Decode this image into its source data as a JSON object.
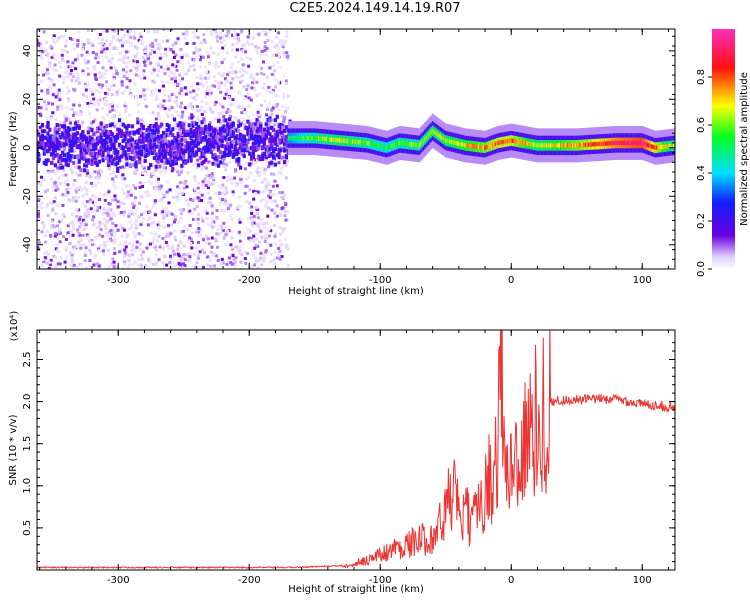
{
  "title": "C2E5.2024.149.14.19.R07",
  "chart_data": [
    {
      "type": "heatmap",
      "xlabel": "Height of straight line (km)",
      "ylabel": "Frequency (Hz)",
      "xlim": [
        -362,
        125
      ],
      "ylim": [
        -50,
        49
      ],
      "xticks": [
        -300,
        -200,
        -100,
        0,
        100
      ],
      "yticks": [
        -40,
        -20,
        0,
        20,
        40
      ],
      "colorbar": {
        "label": "Normalized spectral amplitude",
        "range": [
          0,
          1
        ],
        "ticks": [
          "0.0",
          "0.2",
          "0.4",
          "0.6",
          "0.8"
        ],
        "tick_values": [
          0.0,
          0.2,
          0.4,
          0.6,
          0.8
        ],
        "colormap": "rainbow (white, purple, blue, cyan, green, yellow, red, magenta)"
      },
      "ridge": {
        "x": [
          -362,
          -300,
          -250,
          -200,
          -170,
          -150,
          -130,
          -110,
          -95,
          -85,
          -70,
          -60,
          -50,
          -35,
          -20,
          -10,
          0,
          20,
          50,
          80,
          100,
          110,
          125
        ],
        "frequency": [
          1,
          1,
          2,
          2,
          4,
          4,
          3,
          2,
          0,
          2,
          1,
          7,
          3,
          1,
          0,
          2,
          3,
          1,
          1,
          2,
          2,
          0,
          1
        ],
        "amplitude": [
          0.2,
          0.22,
          0.22,
          0.25,
          0.5,
          0.6,
          0.65,
          0.6,
          0.55,
          0.6,
          0.6,
          0.65,
          0.65,
          0.7,
          0.75,
          0.8,
          0.8,
          0.65,
          0.75,
          0.9,
          0.95,
          0.8,
          0.6
        ]
      }
    },
    {
      "type": "line",
      "series": [
        {
          "x": [
            -362,
            -300,
            -250,
            -200,
            -170,
            -130,
            -120,
            -110,
            -100,
            -90,
            -80,
            -70,
            -60,
            -52,
            -48,
            -44,
            -40,
            -35,
            -30,
            -25,
            -20,
            -15,
            -12,
            -10,
            -7,
            -5,
            -3,
            0,
            5,
            10,
            15,
            20,
            25,
            30,
            40,
            50,
            60,
            70,
            80,
            90,
            100,
            110,
            125
          ],
          "y": [
            0.03,
            0.03,
            0.03,
            0.03,
            0.03,
            0.05,
            0.08,
            0.12,
            0.18,
            0.25,
            0.3,
            0.35,
            0.4,
            0.6,
            0.8,
            1.0,
            0.6,
            0.7,
            0.5,
            0.8,
            1.0,
            1.1,
            1.3,
            1.6,
            2.8,
            1.2,
            1.0,
            1.3,
            1.35,
            1.5,
            1.6,
            1.8,
            1.9,
            2.0,
            2.02,
            2.02,
            2.03,
            2.03,
            2.03,
            2.0,
            1.97,
            1.96,
            1.93
          ]
        }
      ],
      "color": "#ee3333",
      "xlabel": "Height of straight line (km)",
      "ylabel": "SNR (10 * v/v)",
      "y_multiplier": "(x10⁴)",
      "xlim": [
        -362,
        125
      ],
      "ylim": [
        0,
        2.85
      ],
      "xticks": [
        -300,
        -200,
        -100,
        0,
        100
      ],
      "yticks": [
        "0.5",
        "1.0",
        "1.5",
        "2.0",
        "2.5"
      ],
      "ytick_values": [
        0.5,
        1.0,
        1.5,
        2.0,
        2.5
      ]
    }
  ]
}
